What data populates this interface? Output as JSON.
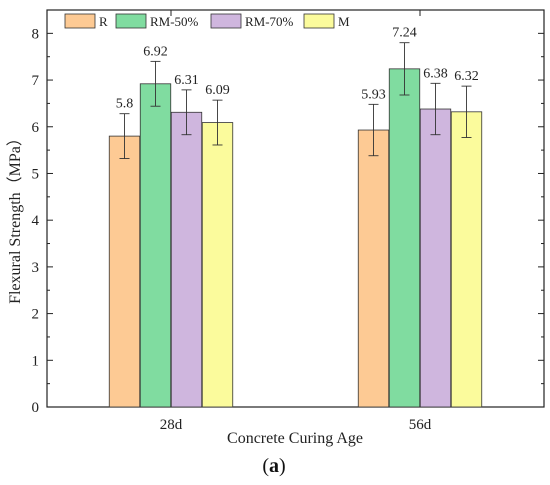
{
  "chart_data": {
    "type": "bar",
    "categories": [
      "28d",
      "56d"
    ],
    "series": [
      {
        "name": "R",
        "values": [
          5.8,
          5.93
        ],
        "errors": [
          0.48,
          0.55
        ],
        "color": "#fdca94"
      },
      {
        "name": "RM-50%",
        "values": [
          6.92,
          7.24
        ],
        "errors": [
          0.48,
          0.56
        ],
        "color": "#80dca0"
      },
      {
        "name": "RM-70%",
        "values": [
          6.31,
          6.38
        ],
        "errors": [
          0.48,
          0.55
        ],
        "color": "#cfb6de"
      },
      {
        "name": "M",
        "values": [
          6.09,
          6.32
        ],
        "errors": [
          0.48,
          0.55
        ],
        "color": "#fbfb9c"
      }
    ],
    "data_labels": [
      [
        "5.8",
        "5.93"
      ],
      [
        "6.92",
        "7.24"
      ],
      [
        "6.31",
        "6.38"
      ],
      [
        "6.09",
        "6.32"
      ]
    ],
    "xlabel": "Concrete Curing Age",
    "ylabel": "Flexural Strength（MPa）",
    "ylim": [
      0,
      8.5
    ],
    "yticks": [
      "0",
      "1",
      "2",
      "3",
      "4",
      "5",
      "6",
      "7",
      "8"
    ],
    "grid": false,
    "legend_position": "top"
  },
  "panel_label": {
    "open": "(",
    "letter": "a",
    "close": ")"
  }
}
